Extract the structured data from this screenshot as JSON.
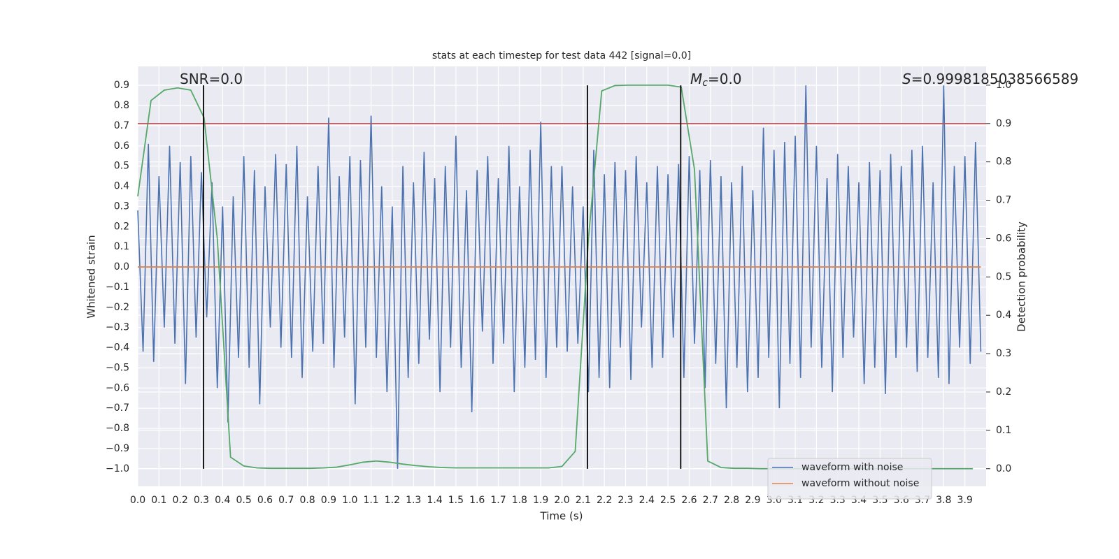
{
  "chart_data": {
    "type": "line",
    "title": "stats at each timestep for test data 442 [signal=0.0]",
    "xlabel": "Time (s)",
    "ylabel": "Whitened strain",
    "y2label": "Detection probability",
    "xlim": [
      0,
      4.0
    ],
    "ylim": [
      -1.087,
      0.994
    ],
    "y2lim": [
      -0.046,
      1.049
    ],
    "xticks": [
      {
        "value": 0,
        "label": "0.0"
      },
      0.1,
      0.2,
      0.3,
      0.4,
      0.5,
      0.6,
      0.7,
      0.8,
      0.9,
      {
        "value": 1,
        "label": "1.0"
      },
      1.1,
      1.2,
      1.3,
      1.4,
      1.5,
      1.6,
      1.7,
      1.8,
      1.9,
      {
        "value": 2,
        "label": "2.0"
      },
      2.1,
      2.2,
      2.3,
      2.4,
      2.5,
      2.6,
      2.7,
      2.8,
      2.9,
      {
        "value": 3,
        "label": "3.0"
      },
      3.1,
      3.2,
      3.3,
      3.4,
      3.5,
      3.6,
      3.7,
      3.8,
      3.9
    ],
    "yticks": [
      {
        "value": -1.0,
        "label": "−1.0"
      },
      {
        "value": -0.9,
        "label": "−0.9"
      },
      {
        "value": -0.8,
        "label": "−0.8"
      },
      {
        "value": -0.7,
        "label": "−0.7"
      },
      {
        "value": -0.6,
        "label": "−0.6"
      },
      {
        "value": -0.5,
        "label": "−0.5"
      },
      {
        "value": -0.4,
        "label": "−0.4"
      },
      {
        "value": -0.3,
        "label": "−0.3"
      },
      {
        "value": -0.2,
        "label": "−0.2"
      },
      {
        "value": -0.1,
        "label": "−0.1"
      },
      {
        "value": 0,
        "label": "0.0"
      },
      0.1,
      0.2,
      0.3,
      0.4,
      0.5,
      0.6,
      0.7,
      0.8,
      0.9
    ],
    "y2ticks": [
      {
        "value": 0,
        "label": "0.0"
      },
      0.1,
      0.2,
      0.3,
      0.4,
      0.5,
      0.6,
      0.7,
      0.8,
      0.9,
      {
        "value": 1,
        "label": "1.0"
      }
    ],
    "grid": true,
    "legend": "lower right",
    "series": [
      {
        "name": "waveform with noise",
        "color": "#4c72b0",
        "x": [
          0,
          0.025,
          0.05,
          0.075,
          0.1,
          0.125,
          0.15,
          0.175,
          0.2,
          0.225,
          0.25,
          0.275,
          0.3,
          0.325,
          0.35,
          0.375,
          0.4,
          0.425,
          0.45,
          0.475,
          0.5,
          0.525,
          0.55,
          0.575,
          0.6,
          0.625,
          0.65,
          0.675,
          0.7,
          0.725,
          0.75,
          0.775,
          0.8,
          0.825,
          0.85,
          0.875,
          0.9,
          0.925,
          0.95,
          0.975,
          1,
          1.025,
          1.05,
          1.075,
          1.1,
          1.125,
          1.15,
          1.175,
          1.2,
          1.225,
          1.25,
          1.275,
          1.3,
          1.325,
          1.35,
          1.375,
          1.4,
          1.425,
          1.45,
          1.475,
          1.5,
          1.525,
          1.55,
          1.575,
          1.6,
          1.625,
          1.65,
          1.675,
          1.7,
          1.725,
          1.75,
          1.775,
          1.8,
          1.825,
          1.85,
          1.875,
          1.9,
          1.925,
          1.95,
          1.975,
          2,
          2.025,
          2.05,
          2.075,
          2.1,
          2.125,
          2.15,
          2.175,
          2.2,
          2.225,
          2.25,
          2.275,
          2.3,
          2.325,
          2.35,
          2.375,
          2.4,
          2.425,
          2.45,
          2.475,
          2.5,
          2.525,
          2.55,
          2.575,
          2.6,
          2.625,
          2.65,
          2.675,
          2.7,
          2.725,
          2.75,
          2.775,
          2.8,
          2.825,
          2.85,
          2.875,
          2.9,
          2.925,
          2.95,
          2.975,
          3,
          3.025,
          3.05,
          3.075,
          3.1,
          3.125,
          3.15,
          3.175,
          3.2,
          3.225,
          3.25,
          3.275,
          3.3,
          3.325,
          3.35,
          3.375,
          3.4,
          3.425,
          3.45,
          3.475,
          3.5,
          3.525,
          3.55,
          3.575,
          3.6,
          3.625,
          3.65,
          3.675,
          3.7,
          3.725,
          3.75,
          3.775,
          3.8,
          3.825,
          3.85,
          3.875,
          3.9,
          3.925,
          3.95,
          3.975
        ],
        "values": [
          0.28,
          -0.42,
          0.61,
          -0.47,
          0.45,
          -0.3,
          0.6,
          -0.38,
          0.52,
          -0.58,
          0.55,
          -0.35,
          0.47,
          -0.25,
          0.42,
          -0.6,
          0.3,
          -0.77,
          0.35,
          -0.45,
          0.55,
          -0.5,
          0.48,
          -0.68,
          0.4,
          -0.3,
          0.56,
          -0.4,
          0.51,
          -0.45,
          0.6,
          -0.55,
          0.35,
          -0.42,
          0.5,
          -0.38,
          0.74,
          -0.5,
          0.45,
          -0.35,
          0.55,
          -0.68,
          0.53,
          -0.4,
          0.75,
          -0.45,
          0.4,
          -0.62,
          0.3,
          -1.0,
          0.5,
          -0.55,
          0.42,
          -0.48,
          0.57,
          -0.36,
          0.44,
          -0.62,
          0.5,
          -0.4,
          0.65,
          -0.5,
          0.38,
          -0.72,
          0.48,
          -0.32,
          0.55,
          -0.48,
          0.44,
          -0.38,
          0.6,
          -0.62,
          0.4,
          -0.5,
          0.58,
          -0.46,
          0.72,
          -0.55,
          0.5,
          -0.4,
          0.5,
          -0.42,
          0.4,
          -0.38,
          0.3,
          -0.62,
          0.58,
          -0.55,
          0.46,
          -0.6,
          0.52,
          -0.4,
          0.48,
          -0.56,
          0.55,
          -0.3,
          0.42,
          -0.5,
          0.5,
          -0.45,
          0.46,
          -0.35,
          0.51,
          -0.55,
          0.55,
          -0.38,
          0.48,
          -0.6,
          0.53,
          -0.48,
          0.45,
          -0.7,
          0.42,
          -0.5,
          0.5,
          -0.62,
          0.38,
          -0.55,
          0.69,
          -0.45,
          0.58,
          -0.7,
          0.62,
          -0.48,
          0.65,
          -0.55,
          0.9,
          -0.4,
          0.6,
          -0.5,
          0.44,
          -0.62,
          0.56,
          -0.45,
          0.5,
          -0.35,
          0.42,
          -0.58,
          0.52,
          -0.5,
          0.48,
          -0.63,
          0.56,
          -0.45,
          0.5,
          -0.4,
          0.58,
          -0.52,
          0.6,
          -0.45,
          0.42,
          -0.55,
          0.9,
          -0.58,
          0.5,
          -0.4,
          0.55,
          -0.48,
          0.62,
          -0.42
        ]
      },
      {
        "name": "waveform without noise",
        "color": "#dd8452",
        "x": [
          0,
          3.975
        ],
        "values": [
          0,
          0
        ]
      },
      {
        "color": "#55a868",
        "axis": "y2",
        "x": [
          0,
          0.0625,
          0.125,
          0.1875,
          0.25,
          0.3125,
          0.375,
          0.4375,
          0.5,
          0.5625,
          0.625,
          0.6875,
          0.75,
          0.8125,
          0.875,
          0.9375,
          1,
          1.0625,
          1.125,
          1.1875,
          1.25,
          1.3125,
          1.375,
          1.4375,
          1.5,
          1.5625,
          1.625,
          1.6875,
          1.75,
          1.8125,
          1.875,
          1.9375,
          2,
          2.0625,
          2.125,
          2.1875,
          2.25,
          2.3125,
          2.375,
          2.4375,
          2.5,
          2.5625,
          2.625,
          2.6875,
          2.75,
          2.8125,
          2.875,
          2.9375,
          3,
          3.0625,
          3.125,
          3.1875,
          3.25,
          3.3125,
          3.375,
          3.4375,
          3.5,
          3.5625,
          3.625,
          3.6875,
          3.75,
          3.8125,
          3.875,
          3.9375
        ],
        "values": [
          0.71,
          0.96,
          0.987,
          0.993,
          0.987,
          0.915,
          0.6,
          0.03,
          0.007,
          0.002,
          0.001,
          0.001,
          0.001,
          0.001,
          0.002,
          0.004,
          0.01,
          0.017,
          0.02,
          0.017,
          0.012,
          0.008,
          0.005,
          0.003,
          0.002,
          0.002,
          0.002,
          0.002,
          0.002,
          0.002,
          0.002,
          0.002,
          0.006,
          0.045,
          0.6,
          0.985,
          0.999,
          1.0,
          1.0,
          1.0,
          1.0,
          0.995,
          0.78,
          0.02,
          0.003,
          0.001,
          0.001,
          0,
          0,
          0,
          0,
          0,
          0,
          0,
          0,
          0,
          0,
          0,
          0,
          0,
          0,
          0,
          0,
          0
        ]
      }
    ],
    "hline": {
      "value": 0.9,
      "axis": "y2",
      "color": "#c44e52"
    },
    "vlines": {
      "x": [
        0.31,
        2.12,
        2.56
      ],
      "span": [
        -1.0,
        0.9
      ],
      "color": "#000000"
    },
    "annotations": [
      {
        "text": "SNR=0.0"
      },
      {
        "symbol": "M",
        "subscript": "c",
        "text": "=0.0"
      },
      {
        "symbol": "S",
        "text": "=0.9998185038566589"
      }
    ]
  }
}
